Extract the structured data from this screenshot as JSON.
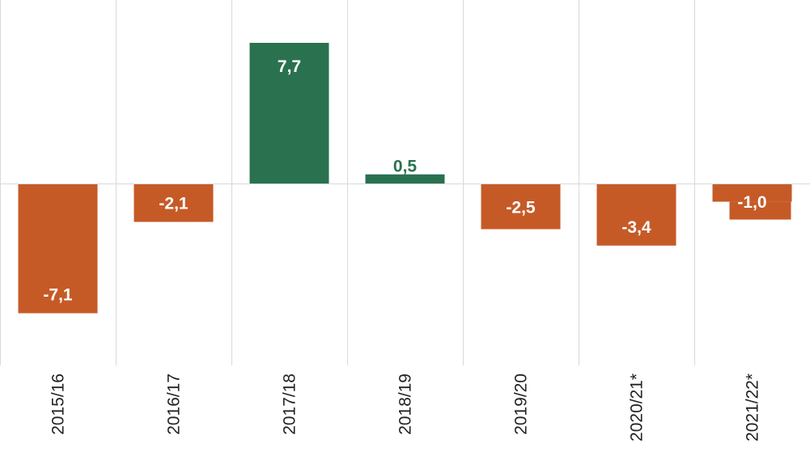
{
  "chart_data": {
    "type": "bar",
    "categories": [
      "2015/16",
      "2016/17",
      "2017/18",
      "2018/19",
      "2019/20",
      "2020/21*",
      "2021/22*"
    ],
    "values": [
      -7.1,
      -2.1,
      7.7,
      0.5,
      -2.5,
      -3.4,
      -1.0
    ],
    "data_labels": [
      "-7,1",
      "-2,1",
      "7,7",
      "0,5",
      "-2,5",
      "-3,4",
      "-1,0"
    ],
    "ylim": [
      -10,
      10
    ],
    "grid": "vertical",
    "colors": {
      "positive": "#2a7150",
      "negative": "#c65a27",
      "label_inside": "#ffffff",
      "label_outside": "#2a7150"
    }
  }
}
